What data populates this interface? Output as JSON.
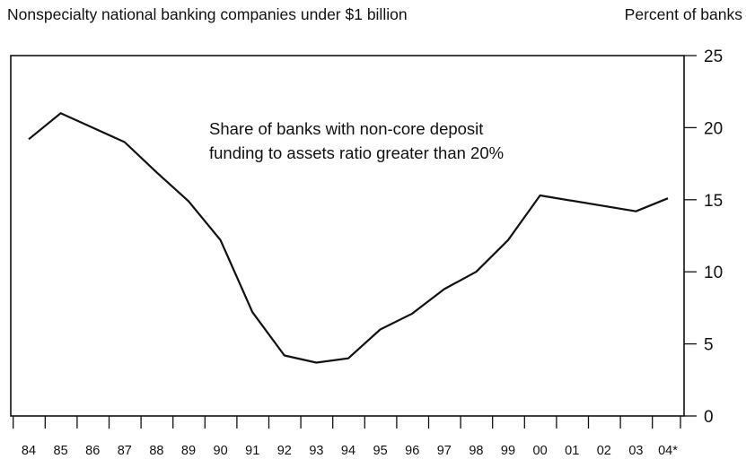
{
  "chart_data": {
    "type": "line",
    "title": "Nonspecialty national banking companies under $1 billion",
    "ylabel": "Percent of banks",
    "xlabel": "",
    "annotation": [
      "Share of banks with non-core deposit",
      "funding to assets ratio greater than 20%"
    ],
    "categories": [
      "84",
      "85",
      "86",
      "87",
      "88",
      "89",
      "90",
      "91",
      "92",
      "93",
      "94",
      "95",
      "96",
      "97",
      "98",
      "99",
      "00",
      "01",
      "02",
      "03",
      "04*"
    ],
    "series": [
      {
        "values": [
          19.2,
          21.0,
          20.0,
          19.0,
          16.9,
          14.9,
          12.2,
          7.2,
          4.2,
          3.7,
          4.0,
          6.0,
          7.1,
          8.8,
          10.0,
          12.2,
          15.3,
          null,
          null,
          14.2,
          15.1
        ]
      }
    ],
    "ylim": [
      0,
      25
    ],
    "yticks": [
      0,
      5,
      10,
      15,
      20,
      25
    ],
    "y_axis_side": "right",
    "grid": false
  }
}
